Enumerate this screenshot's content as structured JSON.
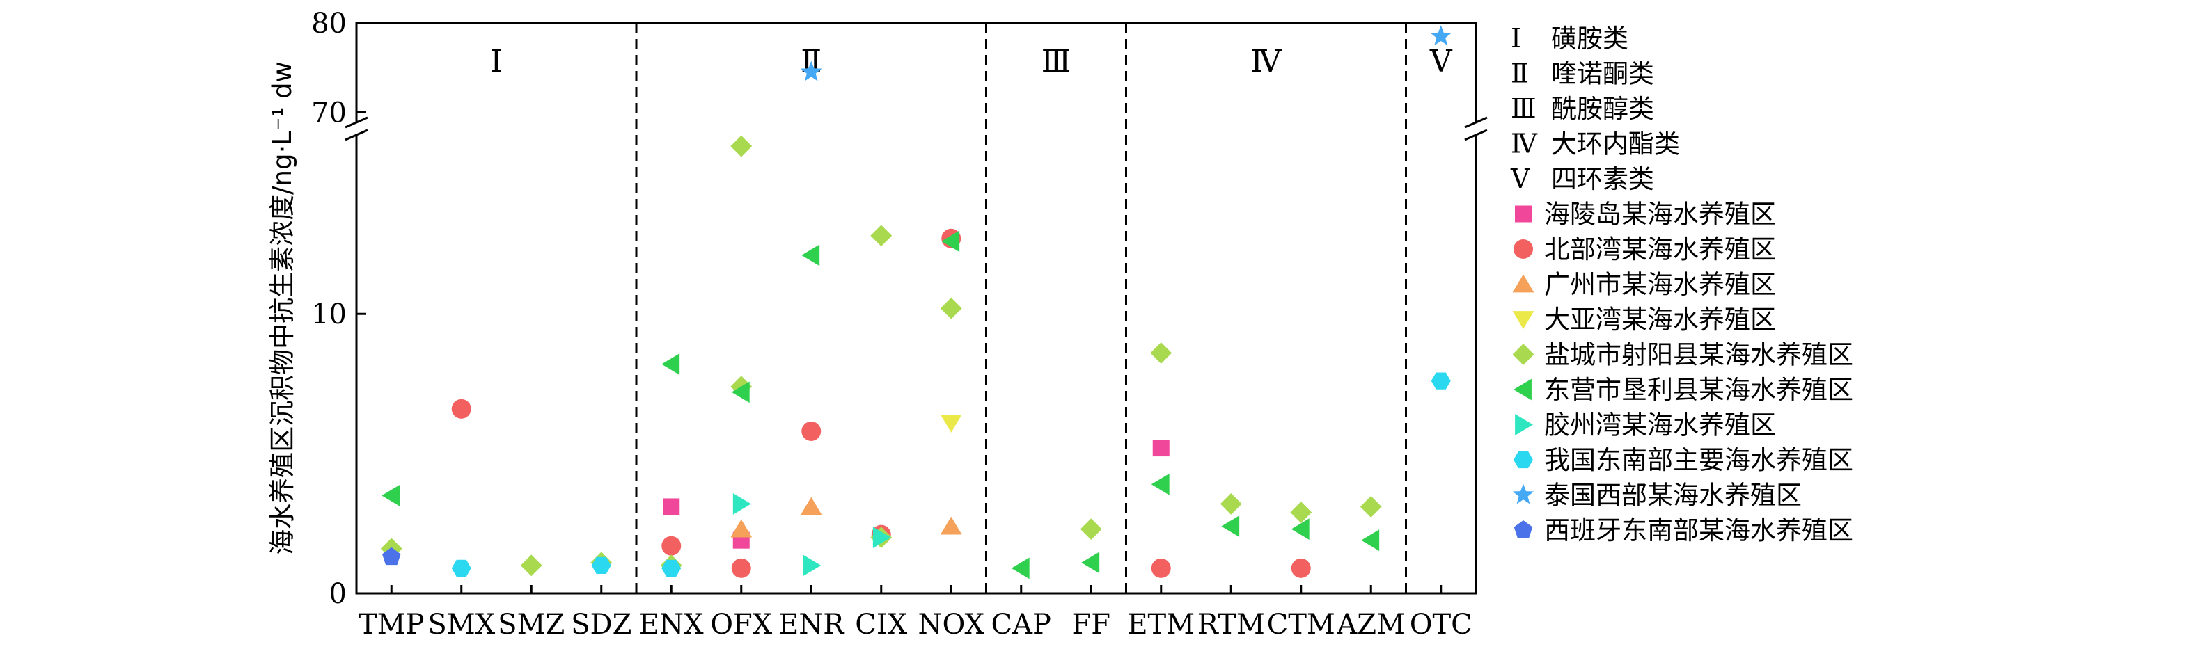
{
  "chart_data": {
    "type": "scatter",
    "ylabel": "海水养殖区沉积物中抗生素浓度/ng·L⁻¹ dw",
    "x_categories": [
      "TMP",
      "SMX",
      "SMZ",
      "SDZ",
      "ENX",
      "OFX",
      "ENR",
      "CIX",
      "NOX",
      "CAP",
      "FF",
      "ETM",
      "RTM",
      "CTM",
      "AZM",
      "OTC"
    ],
    "y_axis": {
      "lower_range": [
        0,
        17
      ],
      "upper_range": [
        67,
        80
      ],
      "broken": true,
      "ticks": [
        "0",
        "10",
        "70",
        "80"
      ]
    },
    "groups": [
      {
        "numeral": "Ⅰ",
        "name": "磺胺类",
        "from": "TMP",
        "to": "SDZ"
      },
      {
        "numeral": "Ⅱ",
        "name": "喹诺酮类",
        "from": "ENX",
        "to": "NOX"
      },
      {
        "numeral": "Ⅲ",
        "name": "酰胺醇类",
        "from": "CAP",
        "to": "FF"
      },
      {
        "numeral": "Ⅳ",
        "name": "大环内酯类",
        "from": "ETM",
        "to": "AZM"
      },
      {
        "numeral": "Ⅴ",
        "name": "四环素类",
        "from": "OTC",
        "to": "OTC"
      }
    ],
    "series": [
      {
        "name": "海陵岛某海水养殖区",
        "marker": "square",
        "color": "#f0479a",
        "points": [
          {
            "x": "ENX",
            "y": 3.1
          },
          {
            "x": "OFX",
            "y": 1.9
          },
          {
            "x": "ETM",
            "y": 5.2
          }
        ]
      },
      {
        "name": "北部湾某海水养殖区",
        "marker": "circle",
        "color": "#f26060",
        "points": [
          {
            "x": "SMX",
            "y": 6.6
          },
          {
            "x": "ENX",
            "y": 1.7
          },
          {
            "x": "OFX",
            "y": 0.9
          },
          {
            "x": "ENR",
            "y": 5.8
          },
          {
            "x": "CIX",
            "y": 2.1
          },
          {
            "x": "NOX",
            "y": 12.7
          },
          {
            "x": "ETM",
            "y": 0.9
          },
          {
            "x": "CTM",
            "y": 0.9
          }
        ]
      },
      {
        "name": "广州市某海水养殖区",
        "marker": "triangle-up",
        "color": "#f5a15a",
        "points": [
          {
            "x": "OFX",
            "y": 2.3
          },
          {
            "x": "ENR",
            "y": 3.1
          },
          {
            "x": "NOX",
            "y": 2.4
          }
        ]
      },
      {
        "name": "大亚湾某海水养殖区",
        "marker": "triangle-down",
        "color": "#ebe84a",
        "points": [
          {
            "x": "NOX",
            "y": 6.1
          }
        ]
      },
      {
        "name": "盐城市射阳县某海水养殖区",
        "marker": "diamond",
        "color": "#a8d94f",
        "points": [
          {
            "x": "TMP",
            "y": 1.6
          },
          {
            "x": "SMZ",
            "y": 1.0
          },
          {
            "x": "SDZ",
            "y": 1.1
          },
          {
            "x": "ENX",
            "y": 1.0
          },
          {
            "x": "OFX",
            "y": 16.0
          },
          {
            "x": "OFX",
            "y": 7.4
          },
          {
            "x": "CIX",
            "y": 12.8
          },
          {
            "x": "CIX",
            "y": 2.0
          },
          {
            "x": "NOX",
            "y": 10.2
          },
          {
            "x": "FF",
            "y": 2.3
          },
          {
            "x": "ETM",
            "y": 8.6
          },
          {
            "x": "RTM",
            "y": 3.2
          },
          {
            "x": "CTM",
            "y": 2.9
          },
          {
            "x": "AZM",
            "y": 3.1
          }
        ]
      },
      {
        "name": "东营市垦利县某海水养殖区",
        "marker": "triangle-left",
        "color": "#2fd04e",
        "points": [
          {
            "x": "TMP",
            "y": 3.5
          },
          {
            "x": "ENX",
            "y": 8.2
          },
          {
            "x": "OFX",
            "y": 7.2
          },
          {
            "x": "ENR",
            "y": 12.1
          },
          {
            "x": "NOX",
            "y": 12.6
          },
          {
            "x": "CAP",
            "y": 0.9
          },
          {
            "x": "FF",
            "y": 1.1
          },
          {
            "x": "ETM",
            "y": 3.9
          },
          {
            "x": "RTM",
            "y": 2.4
          },
          {
            "x": "CTM",
            "y": 2.3
          },
          {
            "x": "AZM",
            "y": 1.9
          }
        ]
      },
      {
        "name": "胶州湾某海水养殖区",
        "marker": "triangle-right",
        "color": "#2ee6c0",
        "points": [
          {
            "x": "OFX",
            "y": 3.2
          },
          {
            "x": "ENR",
            "y": 1.0
          },
          {
            "x": "CIX",
            "y": 2.0
          }
        ]
      },
      {
        "name": "我国东南部主要海水养殖区",
        "marker": "hexagon",
        "color": "#2ad8f0",
        "points": [
          {
            "x": "SMX",
            "y": 0.9
          },
          {
            "x": "SDZ",
            "y": 1.0
          },
          {
            "x": "ENX",
            "y": 0.9
          },
          {
            "x": "OTC",
            "y": 7.6
          }
        ]
      },
      {
        "name": "泰国西部某海水养殖区",
        "marker": "star",
        "color": "#45a8f5",
        "points": [
          {
            "x": "ENR",
            "y": 74.5
          },
          {
            "x": "OTC",
            "y": 78.5
          }
        ]
      },
      {
        "name": "西班牙东南部某海水养殖区",
        "marker": "pentagon",
        "color": "#4b72e8",
        "points": [
          {
            "x": "TMP",
            "y": 1.3
          }
        ]
      }
    ],
    "legend_position": "right"
  }
}
